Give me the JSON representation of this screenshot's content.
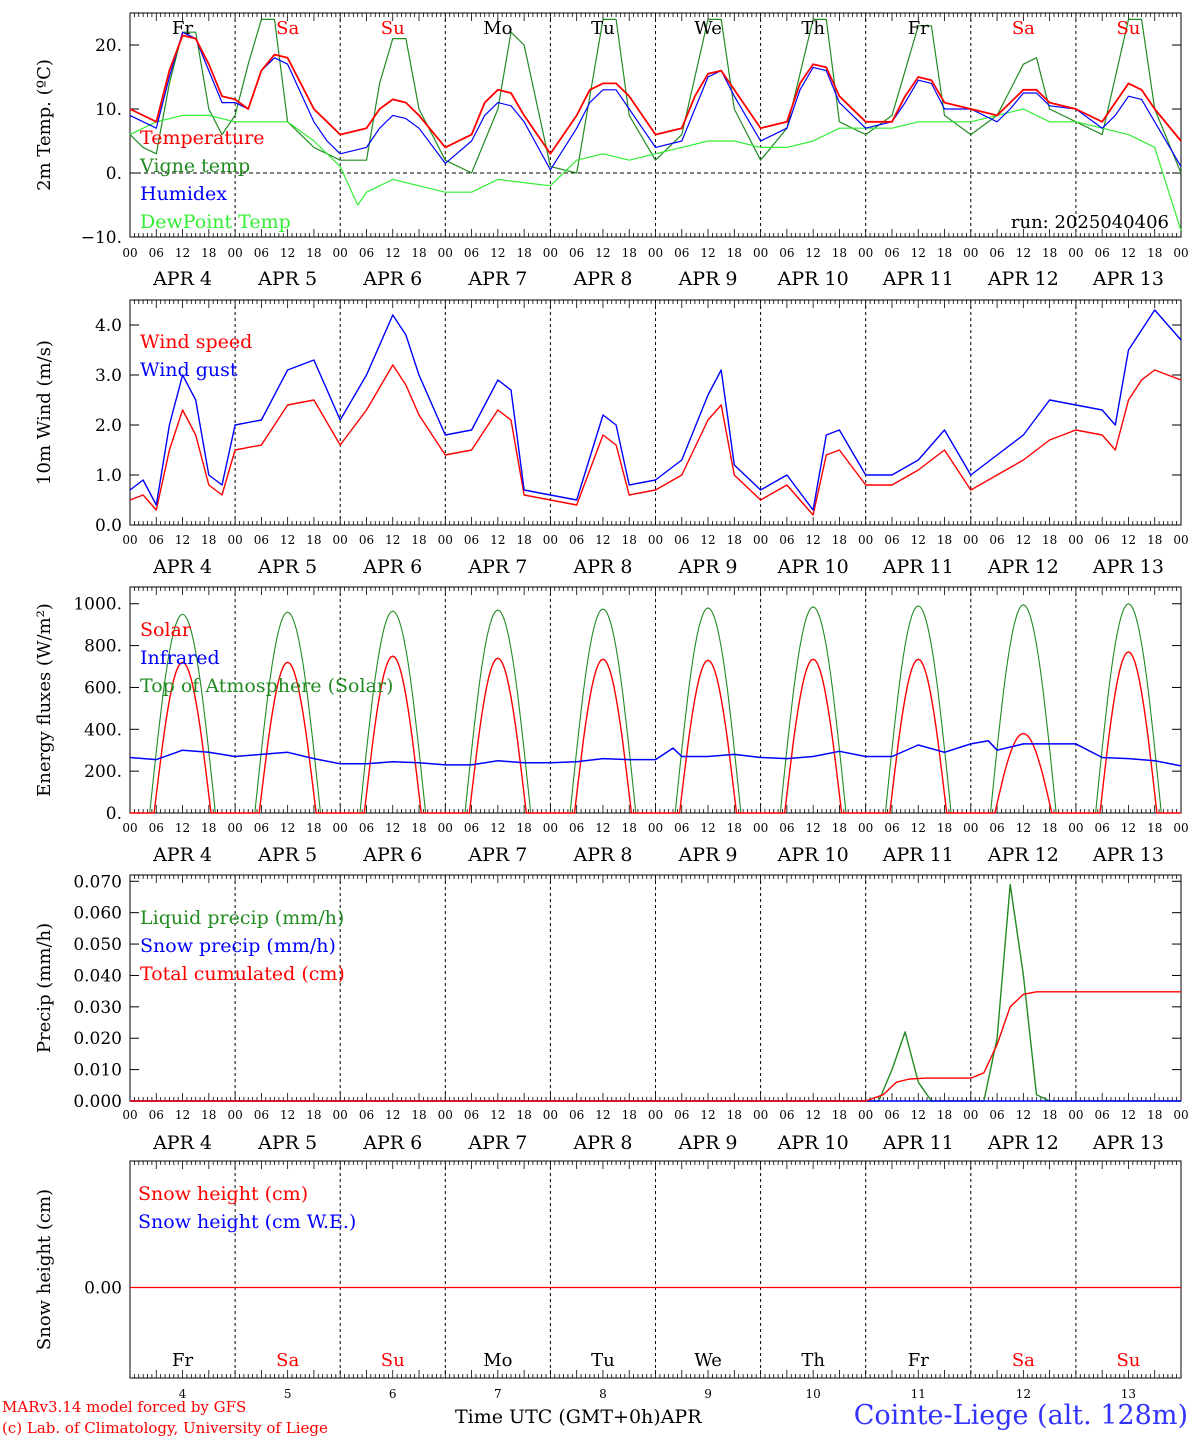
{
  "days_header": [
    "Fr",
    "Sa",
    "Su",
    "Mo",
    "Tu",
    "We",
    "Th",
    "Fr",
    "Sa",
    "Su"
  ],
  "weekend_days": [
    "Sa",
    "Su"
  ],
  "day_numbers": [
    "4",
    "5",
    "6",
    "7",
    "8",
    "9",
    "10",
    "11",
    "12",
    "13"
  ],
  "month": "APR",
  "hour_ticks": [
    "00",
    "06",
    "12",
    "18"
  ],
  "last_hour_tick": "00",
  "colors": {
    "red": "#ff0000",
    "green": "#228b22",
    "blue": "#0000ff",
    "lightgreen": "#33ee33",
    "station": "#3333ff"
  },
  "footer": {
    "credit1": "MARv3.14 model forced by GFS",
    "credit2": "(c) Lab. of Climatology, University of Liege",
    "xaxis_title": "Time UTC (GMT+0h)",
    "xaxis_month": "APR",
    "station": "Cointe-Liege (alt. 128m)"
  },
  "chart_data": [
    {
      "id": "temperature",
      "type": "line",
      "ylabel": "2m Temp. (ºC)",
      "ylim": [
        -10,
        25
      ],
      "yticks": [
        -10,
        0,
        10,
        20
      ],
      "ytick_labels": [
        "−10.",
        "0.",
        "10.",
        "20."
      ],
      "run_label": "run: 2025040406",
      "x_unit": "hours since APR 4 00 UTC",
      "series": [
        {
          "name": "Temperature",
          "color": "red",
          "x": [
            0,
            6,
            9,
            12,
            15,
            18,
            21,
            24,
            27,
            30,
            33,
            36,
            42,
            45,
            48,
            54,
            57,
            60,
            63,
            66,
            72,
            78,
            81,
            84,
            87,
            90,
            96,
            102,
            105,
            108,
            111,
            114,
            120,
            126,
            129,
            132,
            135,
            138,
            144,
            150,
            153,
            156,
            159,
            162,
            168,
            174,
            177,
            180,
            183,
            186,
            192,
            198,
            201,
            204,
            207,
            210,
            216,
            222,
            225,
            228,
            231,
            234,
            240
          ],
          "y": [
            10,
            8,
            16,
            21.5,
            21,
            17,
            12,
            11.5,
            10,
            16,
            18.5,
            18,
            10,
            8,
            6,
            7,
            10,
            11.5,
            11,
            9,
            4,
            6,
            11,
            13,
            12.5,
            9,
            3,
            9,
            13,
            14,
            14,
            12,
            6,
            7,
            12,
            15.5,
            16,
            13,
            7,
            8,
            14,
            17,
            16.5,
            12,
            8,
            8,
            12,
            15,
            14.5,
            11,
            10,
            9,
            11,
            13,
            13,
            11,
            10,
            8,
            11,
            14,
            13,
            10,
            5
          ]
        },
        {
          "name": "Vigne temp",
          "color": "green",
          "x": [
            0,
            3,
            6,
            9,
            12,
            15,
            18,
            21,
            24,
            27,
            30,
            33,
            36,
            42,
            48,
            54,
            57,
            60,
            63,
            66,
            72,
            78,
            84,
            87,
            90,
            96,
            102,
            108,
            111,
            114,
            120,
            126,
            132,
            135,
            138,
            144,
            150,
            156,
            159,
            162,
            168,
            174,
            180,
            183,
            186,
            192,
            198,
            204,
            207,
            210,
            216,
            222,
            228,
            231,
            234,
            240
          ],
          "y": [
            6,
            4,
            3,
            14,
            22,
            22,
            10,
            6,
            9,
            17,
            24,
            24,
            8,
            4,
            2,
            2,
            14,
            21,
            21,
            10,
            2,
            0,
            10,
            22,
            20,
            1,
            0,
            24,
            24,
            9,
            2,
            6,
            24,
            24,
            10,
            2,
            7,
            24,
            24,
            8,
            6,
            9,
            23,
            23,
            9,
            6,
            9,
            17,
            18,
            10,
            8,
            6,
            24,
            24,
            10,
            0
          ]
        },
        {
          "name": "Humidex",
          "color": "blue",
          "x": [
            0,
            6,
            9,
            12,
            15,
            18,
            21,
            24,
            27,
            30,
            33,
            36,
            42,
            45,
            48,
            54,
            57,
            60,
            63,
            66,
            72,
            78,
            81,
            84,
            87,
            90,
            96,
            102,
            105,
            108,
            111,
            114,
            120,
            126,
            129,
            132,
            135,
            138,
            144,
            150,
            153,
            156,
            159,
            162,
            168,
            174,
            177,
            180,
            183,
            186,
            192,
            198,
            201,
            204,
            207,
            210,
            216,
            222,
            225,
            228,
            231,
            234,
            240
          ],
          "y": [
            9,
            7,
            15,
            22,
            21,
            16,
            11,
            11,
            10,
            16,
            18,
            17,
            8,
            5,
            3,
            4,
            7,
            9,
            8.5,
            7,
            1.5,
            5,
            9,
            11,
            10.5,
            8,
            0.5,
            7,
            11,
            13,
            13,
            10,
            4,
            5,
            10,
            15,
            16,
            12,
            5,
            7,
            13,
            16.5,
            16,
            11,
            7,
            8,
            11,
            14.5,
            14,
            10,
            10,
            8,
            10,
            12.5,
            12.5,
            10.5,
            10,
            7,
            9,
            12,
            11.5,
            8,
            1
          ]
        },
        {
          "name": "DewPoint Temp",
          "color": "lightgreen",
          "x": [
            0,
            6,
            12,
            18,
            24,
            30,
            36,
            42,
            48,
            52,
            54,
            60,
            66,
            72,
            78,
            84,
            90,
            96,
            102,
            108,
            114,
            120,
            126,
            132,
            138,
            144,
            150,
            156,
            162,
            168,
            174,
            180,
            186,
            192,
            198,
            204,
            210,
            216,
            222,
            228,
            234,
            240
          ],
          "y": [
            6,
            8,
            9,
            9,
            8,
            8,
            8,
            5,
            1,
            -5,
            -3,
            -1,
            -2,
            -3,
            -3,
            -1,
            -1.5,
            -2,
            2,
            3,
            2,
            3,
            4,
            5,
            5,
            4,
            4,
            5,
            7,
            7,
            7,
            8,
            8,
            8,
            9,
            10,
            8,
            8,
            7,
            6,
            4,
            -9
          ]
        }
      ]
    },
    {
      "id": "wind",
      "type": "line",
      "ylabel": "10m Wind (m/s)",
      "ylim": [
        0,
        4.5
      ],
      "yticks": [
        0,
        1,
        2,
        3,
        4
      ],
      "ytick_labels": [
        "0.0",
        "1.0",
        "2.0",
        "3.0",
        "4.0"
      ],
      "series": [
        {
          "name": "Wind speed",
          "color": "red",
          "x": [
            0,
            3,
            6,
            9,
            12,
            15,
            18,
            21,
            24,
            30,
            36,
            42,
            48,
            54,
            60,
            63,
            66,
            72,
            78,
            84,
            87,
            90,
            96,
            102,
            108,
            111,
            114,
            120,
            126,
            132,
            135,
            138,
            144,
            150,
            156,
            159,
            162,
            168,
            174,
            180,
            186,
            192,
            198,
            204,
            210,
            216,
            222,
            225,
            228,
            231,
            234,
            240
          ],
          "y": [
            0.5,
            0.6,
            0.3,
            1.5,
            2.3,
            1.8,
            0.8,
            0.6,
            1.5,
            1.6,
            2.4,
            2.5,
            1.6,
            2.3,
            3.2,
            2.8,
            2.2,
            1.4,
            1.5,
            2.3,
            2.1,
            0.6,
            0.5,
            0.4,
            1.8,
            1.6,
            0.6,
            0.7,
            1,
            2.1,
            2.4,
            1.0,
            0.5,
            0.8,
            0.2,
            1.4,
            1.5,
            0.8,
            0.8,
            1.1,
            1.5,
            0.7,
            1.0,
            1.3,
            1.7,
            1.9,
            1.8,
            1.5,
            2.5,
            2.9,
            3.1,
            2.9
          ]
        },
        {
          "name": "Wind gust",
          "color": "blue",
          "x": [
            0,
            3,
            6,
            9,
            12,
            15,
            18,
            21,
            24,
            30,
            36,
            42,
            48,
            54,
            60,
            63,
            66,
            72,
            78,
            84,
            87,
            90,
            96,
            102,
            108,
            111,
            114,
            120,
            126,
            132,
            135,
            138,
            144,
            150,
            156,
            159,
            162,
            168,
            174,
            180,
            186,
            192,
            198,
            204,
            210,
            216,
            222,
            225,
            228,
            231,
            234,
            240
          ],
          "y": [
            0.7,
            0.9,
            0.4,
            2,
            3,
            2.5,
            1,
            0.8,
            2,
            2.1,
            3.1,
            3.3,
            2.1,
            3,
            4.2,
            3.8,
            3.0,
            1.8,
            1.9,
            2.9,
            2.7,
            0.7,
            0.6,
            0.5,
            2.2,
            2.0,
            0.8,
            0.9,
            1.3,
            2.6,
            3.1,
            1.2,
            0.7,
            1.0,
            0.3,
            1.8,
            1.9,
            1.0,
            1.0,
            1.3,
            1.9,
            1.0,
            1.4,
            1.8,
            2.5,
            2.4,
            2.3,
            2.0,
            3.5,
            3.9,
            4.3,
            3.7
          ]
        }
      ]
    },
    {
      "id": "energy",
      "type": "line",
      "ylabel": "Energy fluxes (W/m²)",
      "ylim": [
        0,
        1080
      ],
      "yticks": [
        0,
        200,
        400,
        600,
        800,
        1000
      ],
      "ytick_labels": [
        "0.",
        "200.",
        "400.",
        "600.",
        "800.",
        "1000."
      ],
      "solar_peaks": [
        720,
        720,
        750,
        740,
        735,
        730,
        735,
        735,
        380,
        770
      ],
      "toa_peaks": [
        950,
        960,
        965,
        970,
        975,
        980,
        985,
        990,
        995,
        1000
      ],
      "series": [
        {
          "name": "Solar",
          "color": "red"
        },
        {
          "name": "Infrared",
          "color": "blue",
          "x": [
            0,
            6,
            12,
            18,
            24,
            30,
            36,
            42,
            48,
            54,
            60,
            66,
            72,
            78,
            84,
            90,
            96,
            102,
            108,
            114,
            120,
            124,
            126,
            132,
            138,
            144,
            150,
            156,
            162,
            168,
            174,
            180,
            186,
            192,
            196,
            198,
            204,
            210,
            216,
            222,
            228,
            234,
            240
          ],
          "y": [
            265,
            255,
            300,
            290,
            270,
            280,
            290,
            260,
            235,
            235,
            245,
            240,
            230,
            230,
            250,
            240,
            240,
            245,
            260,
            255,
            255,
            310,
            270,
            270,
            280,
            265,
            260,
            270,
            295,
            270,
            270,
            325,
            290,
            330,
            345,
            300,
            330,
            330,
            330,
            265,
            260,
            250,
            225
          ]
        },
        {
          "name": "Top of Atmosphere (Solar)",
          "color": "green"
        }
      ]
    },
    {
      "id": "precip",
      "type": "line",
      "ylabel": "Precip (mm/h)",
      "ylim": [
        0,
        0.072
      ],
      "yticks": [
        0,
        0.01,
        0.02,
        0.03,
        0.04,
        0.05,
        0.06,
        0.07
      ],
      "ytick_labels": [
        "0.000",
        "0.010",
        "0.020",
        "0.030",
        "0.040",
        "0.050",
        "0.060",
        "0.070"
      ],
      "series": [
        {
          "name": "Liquid precip (mm/h)",
          "color": "green",
          "x": [
            0,
            168,
            171,
            174,
            177,
            180,
            183,
            192,
            195,
            198,
            201,
            204,
            207,
            210,
            240
          ],
          "y": [
            0,
            0,
            0,
            0.01,
            0.022,
            0.006,
            0,
            0,
            0,
            0.02,
            0.069,
            0.04,
            0.002,
            0,
            0
          ]
        },
        {
          "name": "Snow precip (mm/h)",
          "color": "blue",
          "x": [
            0,
            240
          ],
          "y": [
            0,
            0
          ]
        },
        {
          "name": "Total cumulated (cm)",
          "color": "red",
          "x": [
            0,
            168,
            172,
            175,
            178,
            182,
            192,
            195,
            198,
            201,
            204,
            207,
            210,
            240
          ],
          "y": [
            0,
            0,
            0.002,
            0.006,
            0.007,
            0.0073,
            0.0073,
            0.009,
            0.018,
            0.03,
            0.034,
            0.0348,
            0.0348,
            0.0348
          ]
        }
      ]
    },
    {
      "id": "snow",
      "type": "line",
      "ylabel": "Snow height (cm)",
      "ytick_labels": [
        "0.00"
      ],
      "series": [
        {
          "name": "Snow height (cm)",
          "color": "red",
          "x": [
            0,
            240
          ],
          "y": [
            0,
            0
          ]
        },
        {
          "name": "Snow height (cm W.E.)",
          "color": "blue",
          "x": [
            0,
            240
          ],
          "y": [
            0,
            0
          ]
        }
      ]
    }
  ]
}
